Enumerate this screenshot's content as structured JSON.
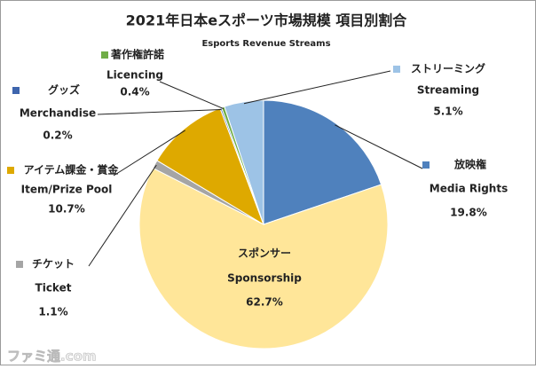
{
  "chart_data": {
    "type": "pie",
    "title": "2021年日本eスポーツ市場規模 項目別割合",
    "subtitle": "Esports Revenue Streams",
    "slices": [
      {
        "name_ja": "放映権",
        "name": "Media Rights",
        "value": 19.8,
        "value_label": "19.8%",
        "color": "#4f81bd"
      },
      {
        "name_ja": "スポンサー",
        "name": "Sponsorship",
        "value": 62.7,
        "value_label": "62.7%",
        "color": "#ffe699"
      },
      {
        "name_ja": "チケット",
        "name": "Ticket",
        "value": 1.1,
        "value_label": "1.1%",
        "color": "#a5a5a5"
      },
      {
        "name_ja": "アイテム課金・賞金",
        "name": "Item/Prize Pool",
        "value": 10.7,
        "value_label": "10.7%",
        "color": "#dea900"
      },
      {
        "name_ja": "グッズ",
        "name": "Merchandise",
        "value": 0.2,
        "value_label": "0.2%",
        "color": "#3e65ad"
      },
      {
        "name_ja": "著作権許諾",
        "name": "Licencing",
        "value": 0.4,
        "value_label": "0.4%",
        "color": "#70ad47"
      },
      {
        "name_ja": "ストリーミング",
        "name": "Streaming",
        "value": 5.1,
        "value_label": "5.1%",
        "color": "#9dc3e6"
      }
    ],
    "watermark": "ファミ通.com"
  }
}
